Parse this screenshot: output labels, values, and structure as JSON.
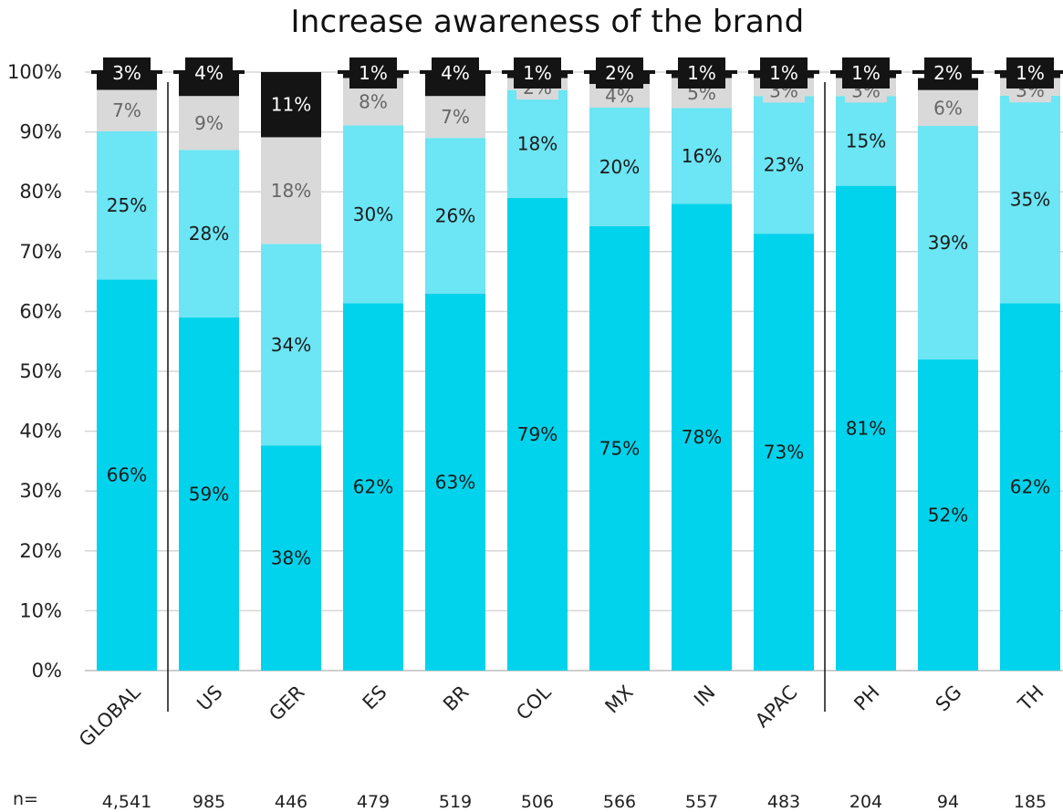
{
  "chart_data": {
    "type": "bar",
    "stacked": true,
    "title": "Increase awareness of the brand",
    "categories": [
      "GLOBAL",
      "US",
      "GER",
      "ES",
      "BR",
      "COL",
      "MX",
      "IN",
      "APAC",
      "PH",
      "SG",
      "TH"
    ],
    "n_label": "n=",
    "n_values": [
      "4,541",
      "985",
      "446",
      "479",
      "519",
      "506",
      "566",
      "557",
      "483",
      "204",
      "94",
      "185"
    ],
    "ylim": [
      0,
      100
    ],
    "yticks": [
      "0%",
      "10%",
      "20%",
      "30%",
      "40%",
      "50%",
      "60%",
      "70%",
      "80%",
      "90%",
      "100%"
    ],
    "grid": true,
    "legend": "none",
    "group_dividers_after": [
      "GLOBAL",
      "APAC"
    ],
    "series": [
      {
        "color": "#00d3eb",
        "label_color": "#1a1a1a",
        "values": [
          66,
          59,
          38,
          62,
          63,
          79,
          75,
          78,
          73,
          81,
          52,
          62
        ],
        "labels": [
          "66%",
          "59%",
          "38%",
          "62%",
          "63%",
          "79%",
          "75%",
          "78%",
          "73%",
          "81%",
          "52%",
          "62%"
        ]
      },
      {
        "color": "#6ce5f4",
        "label_color": "#1a1a1a",
        "values": [
          25,
          28,
          34,
          30,
          26,
          18,
          20,
          16,
          23,
          15,
          39,
          35
        ],
        "labels": [
          "25%",
          "28%",
          "34%",
          "30%",
          "26%",
          "18%",
          "20%",
          "16%",
          "23%",
          "15%",
          "39%",
          "35%"
        ]
      },
      {
        "color": "#d9d9d9",
        "label_color": "#666666",
        "values": [
          7,
          9,
          18,
          8,
          7,
          2,
          4,
          5,
          3,
          3,
          6,
          3
        ],
        "labels": [
          "7%",
          "9%",
          "18%",
          "8%",
          "7%",
          "2%",
          "4%",
          "5%",
          "3%",
          "3%",
          "6%",
          "3%"
        ]
      },
      {
        "color": "#141414",
        "label_color": "#ffffff",
        "values": [
          3,
          4,
          11,
          1,
          4,
          1,
          2,
          1,
          1,
          1,
          2,
          1
        ],
        "labels": [
          "3%",
          "4%",
          "11%",
          "1%",
          "4%",
          "1%",
          "2%",
          "1%",
          "1%",
          "1%",
          "2%",
          "1%"
        ]
      }
    ]
  }
}
